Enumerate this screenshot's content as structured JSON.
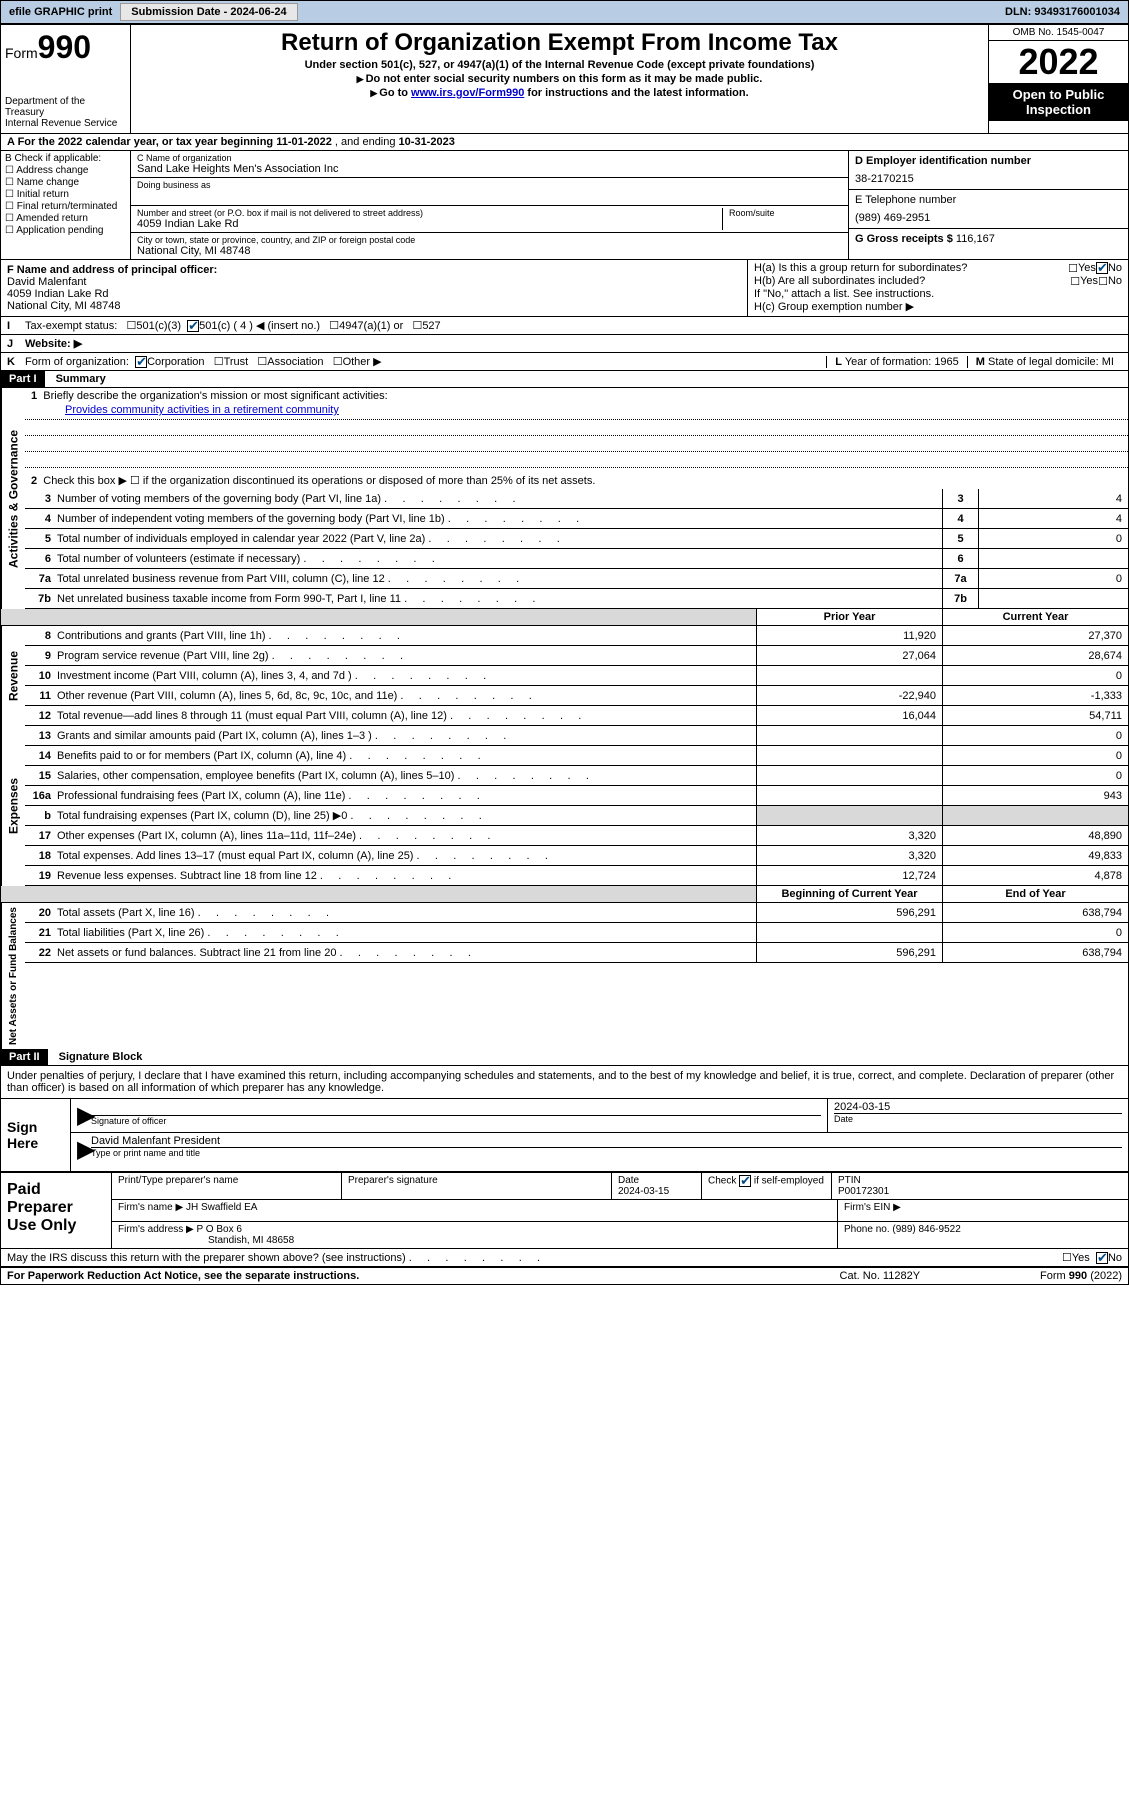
{
  "topbar": {
    "efile": "efile GRAPHIC print",
    "subdate_label": "Submission Date - ",
    "subdate": "2024-06-24",
    "dln_label": "DLN: ",
    "dln": "93493176001034"
  },
  "header": {
    "form_label": "Form",
    "form_num": "990",
    "dept": "Department of the Treasury\nInternal Revenue Service",
    "title": "Return of Organization Exempt From Income Tax",
    "sub1": "Under section 501(c), 527, or 4947(a)(1) of the Internal Revenue Code (except private foundations)",
    "sub2": "Do not enter social security numbers on this form as it may be made public.",
    "sub3_pre": "Go to ",
    "sub3_link": "www.irs.gov/Form990",
    "sub3_post": " for instructions and the latest information.",
    "omb": "OMB No. 1545-0047",
    "year": "2022",
    "open": "Open to Public Inspection"
  },
  "rowA": {
    "text_pre": "A For the 2022 calendar year, or tax year beginning ",
    "begin": "11-01-2022",
    "mid": " , and ending ",
    "end": "10-31-2023"
  },
  "boxB": {
    "hdr": "B Check if applicable:",
    "items": [
      "Address change",
      "Name change",
      "Initial return",
      "Final return/terminated",
      "Amended return",
      "Application pending"
    ]
  },
  "boxC": {
    "label": "C Name of organization",
    "name": "Sand Lake Heights Men's Association Inc",
    "dba_label": "Doing business as",
    "street_label": "Number and street (or P.O. box if mail is not delivered to street address)",
    "room_label": "Room/suite",
    "street": "4059 Indian Lake Rd",
    "city_label": "City or town, state or province, country, and ZIP or foreign postal code",
    "city": "National City, MI  48748"
  },
  "boxD": {
    "label": "D Employer identification number",
    "ein": "38-2170215"
  },
  "boxE": {
    "label": "E Telephone number",
    "phone": "(989) 469-2951"
  },
  "boxG": {
    "label": "G Gross receipts $ ",
    "val": "116,167"
  },
  "boxF": {
    "label": "F Name and address of principal officer:",
    "name": "David Malenfant",
    "addr1": "4059 Indian Lake Rd",
    "addr2": "National City, MI  48748"
  },
  "boxH": {
    "a": "H(a)  Is this a group return for subordinates?",
    "b": "H(b)  Are all subordinates included?",
    "note": "If \"No,\" attach a list. See instructions.",
    "c": "H(c)  Group exemption number ▶",
    "yes": "Yes",
    "no": "No"
  },
  "rowI": {
    "label": "I",
    "txt": "Tax-exempt status:",
    "opts": [
      "501(c)(3)",
      "501(c) ( 4 ) ◀ (insert no.)",
      "4947(a)(1) or",
      "527"
    ]
  },
  "rowJ": {
    "label": "J",
    "txt": "Website: ▶"
  },
  "rowK": {
    "label": "K",
    "txt": "Form of organization:",
    "opts": [
      "Corporation",
      "Trust",
      "Association",
      "Other ▶"
    ]
  },
  "rowL": {
    "label": "L",
    "txt": "Year of formation: ",
    "val": "1965"
  },
  "rowM": {
    "label": "M",
    "txt": "State of legal domicile: ",
    "val": "MI"
  },
  "part1": {
    "hdr": "Part I",
    "title": "Summary"
  },
  "summary": {
    "tabs": [
      "Activities & Governance",
      "Revenue",
      "Expenses",
      "Net Assets or Fund Balances"
    ],
    "line1": "Briefly describe the organization's mission or most significant activities:",
    "mission": "Provides community activities in a retirement community",
    "line2": "Check this box ▶ ☐  if the organization discontinued its operations or disposed of more than 25% of its net assets.",
    "govlines": [
      {
        "n": "3",
        "t": "Number of voting members of the governing body (Part VI, line 1a)",
        "v": "4"
      },
      {
        "n": "4",
        "t": "Number of independent voting members of the governing body (Part VI, line 1b)",
        "v": "4"
      },
      {
        "n": "5",
        "t": "Total number of individuals employed in calendar year 2022 (Part V, line 2a)",
        "v": "0"
      },
      {
        "n": "6",
        "t": "Total number of volunteers (estimate if necessary)",
        "v": ""
      },
      {
        "n": "7a",
        "t": "Total unrelated business revenue from Part VIII, column (C), line 12",
        "v": "0"
      },
      {
        "n": "7b",
        "t": "Net unrelated business taxable income from Form 990-T, Part I, line 11",
        "v": ""
      }
    ],
    "cols": {
      "prior": "Prior Year",
      "current": "Current Year",
      "boy": "Beginning of Current Year",
      "eoy": "End of Year"
    },
    "revlines": [
      {
        "n": "8",
        "t": "Contributions and grants (Part VIII, line 1h)",
        "p": "11,920",
        "c": "27,370"
      },
      {
        "n": "9",
        "t": "Program service revenue (Part VIII, line 2g)",
        "p": "27,064",
        "c": "28,674"
      },
      {
        "n": "10",
        "t": "Investment income (Part VIII, column (A), lines 3, 4, and 7d )",
        "p": "",
        "c": "0"
      },
      {
        "n": "11",
        "t": "Other revenue (Part VIII, column (A), lines 5, 6d, 8c, 9c, 10c, and 11e)",
        "p": "-22,940",
        "c": "-1,333"
      },
      {
        "n": "12",
        "t": "Total revenue—add lines 8 through 11 (must equal Part VIII, column (A), line 12)",
        "p": "16,044",
        "c": "54,711"
      }
    ],
    "explines": [
      {
        "n": "13",
        "t": "Grants and similar amounts paid (Part IX, column (A), lines 1–3 )",
        "p": "",
        "c": "0"
      },
      {
        "n": "14",
        "t": "Benefits paid to or for members (Part IX, column (A), line 4)",
        "p": "",
        "c": "0"
      },
      {
        "n": "15",
        "t": "Salaries, other compensation, employee benefits (Part IX, column (A), lines 5–10)",
        "p": "",
        "c": "0"
      },
      {
        "n": "16a",
        "t": "Professional fundraising fees (Part IX, column (A), line 11e)",
        "p": "",
        "c": "943"
      },
      {
        "n": "b",
        "t": "Total fundraising expenses (Part IX, column (D), line 25) ▶0",
        "p": "GREY",
        "c": "GREY"
      },
      {
        "n": "17",
        "t": "Other expenses (Part IX, column (A), lines 11a–11d, 11f–24e)",
        "p": "3,320",
        "c": "48,890"
      },
      {
        "n": "18",
        "t": "Total expenses. Add lines 13–17 (must equal Part IX, column (A), line 25)",
        "p": "3,320",
        "c": "49,833"
      },
      {
        "n": "19",
        "t": "Revenue less expenses. Subtract line 18 from line 12",
        "p": "12,724",
        "c": "4,878"
      }
    ],
    "netlines": [
      {
        "n": "20",
        "t": "Total assets (Part X, line 16)",
        "p": "596,291",
        "c": "638,794"
      },
      {
        "n": "21",
        "t": "Total liabilities (Part X, line 26)",
        "p": "",
        "c": "0"
      },
      {
        "n": "22",
        "t": "Net assets or fund balances. Subtract line 21 from line 20",
        "p": "596,291",
        "c": "638,794"
      }
    ]
  },
  "part2": {
    "hdr": "Part II",
    "title": "Signature Block"
  },
  "sig": {
    "decl": "Under penalties of perjury, I declare that I have examined this return, including accompanying schedules and statements, and to the best of my knowledge and belief, it is true, correct, and complete. Declaration of preparer (other than officer) is based on all information of which preparer has any knowledge.",
    "here": "Sign Here",
    "sig_label": "Signature of officer",
    "date_label": "Date",
    "date": "2024-03-15",
    "name": "David Malenfant  President",
    "name_label": "Type or print name and title"
  },
  "paid": {
    "hdr": "Paid Preparer Use Only",
    "cols": [
      "Print/Type preparer's name",
      "Preparer's signature",
      "Date",
      "",
      "PTIN"
    ],
    "date": "2024-03-15",
    "self": "Check ☑ if self-employed",
    "ptin": "P00172301",
    "firm_label": "Firm's name    ▶ ",
    "firm": "JH Swaffield EA",
    "ein_label": "Firm's EIN ▶",
    "addr_label": "Firm's address ▶ ",
    "addr1": "P O Box 6",
    "addr2": "Standish, MI  48658",
    "phone_label": "Phone no. ",
    "phone": "(989) 846-9522"
  },
  "discuss": {
    "txt": "May the IRS discuss this return with the preparer shown above? (see instructions)",
    "yes": "Yes",
    "no": "No"
  },
  "footer": {
    "left": "For Paperwork Reduction Act Notice, see the separate instructions.",
    "mid": "Cat. No. 11282Y",
    "right": "Form 990 (2022)"
  }
}
